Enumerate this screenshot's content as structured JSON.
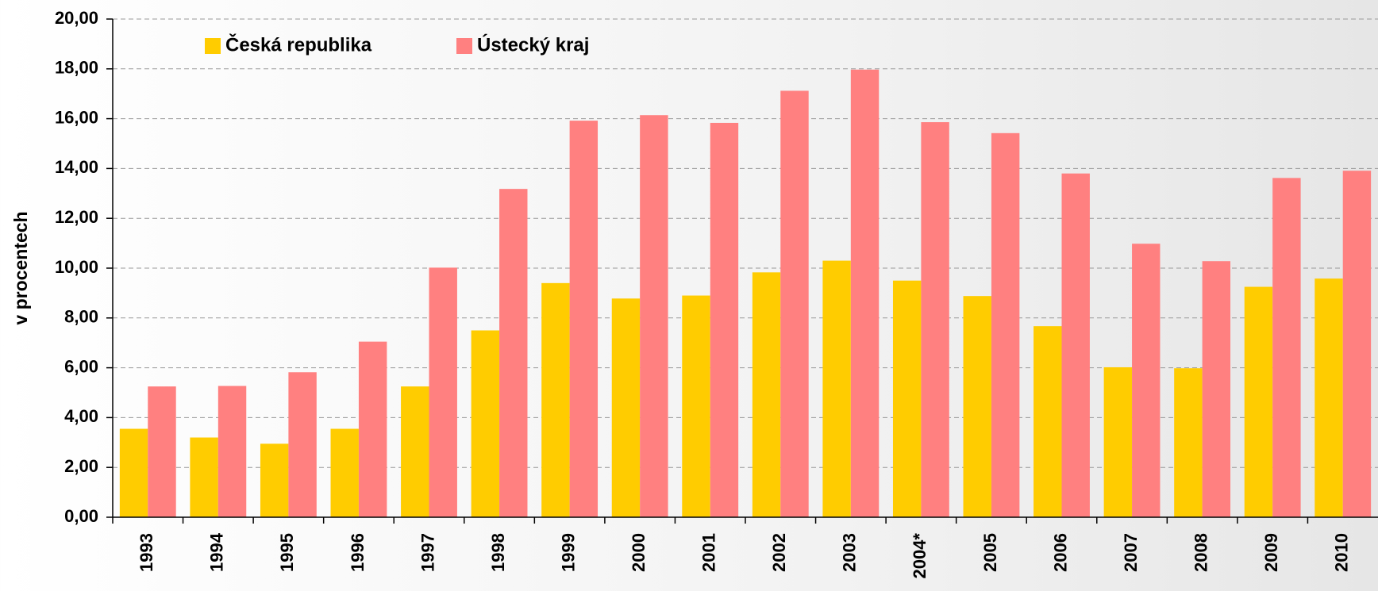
{
  "chart_data": {
    "type": "bar",
    "y_label": "v procentech",
    "categories": [
      "1993",
      "1994",
      "1995",
      "1996",
      "1997",
      "1998",
      "1999",
      "2000",
      "2001",
      "2002",
      "2003",
      "2004*",
      "2005",
      "2006",
      "2007",
      "2008",
      "2009",
      "2010"
    ],
    "series": [
      {
        "name": "Česká republika",
        "color": "#ffcc00",
        "values": [
          3.55,
          3.2,
          2.95,
          3.55,
          5.25,
          7.5,
          9.4,
          8.78,
          8.9,
          9.83,
          10.3,
          9.5,
          8.88,
          7.67,
          6.02,
          5.98,
          9.25,
          9.58
        ]
      },
      {
        "name": "Ústecký kraj",
        "color": "#ff8080",
        "values": [
          5.25,
          5.27,
          5.82,
          7.05,
          10.02,
          13.18,
          15.92,
          16.14,
          15.83,
          17.12,
          17.97,
          15.86,
          15.42,
          13.8,
          10.98,
          10.28,
          13.62,
          13.91
        ]
      }
    ],
    "ylim": [
      0,
      20
    ],
    "yticks": [
      {
        "value": 0,
        "label": "0,00"
      },
      {
        "value": 2,
        "label": "2,00"
      },
      {
        "value": 4,
        "label": "4,00"
      },
      {
        "value": 6,
        "label": "6,00"
      },
      {
        "value": 8,
        "label": "8,00"
      },
      {
        "value": 10,
        "label": "10,00"
      },
      {
        "value": 12,
        "label": "12,00"
      },
      {
        "value": 14,
        "label": "14,00"
      },
      {
        "value": 16,
        "label": "16,00"
      },
      {
        "value": 18,
        "label": "18,00"
      },
      {
        "value": 20,
        "label": "20,00"
      }
    ],
    "grid": true,
    "legend": "top-left"
  }
}
